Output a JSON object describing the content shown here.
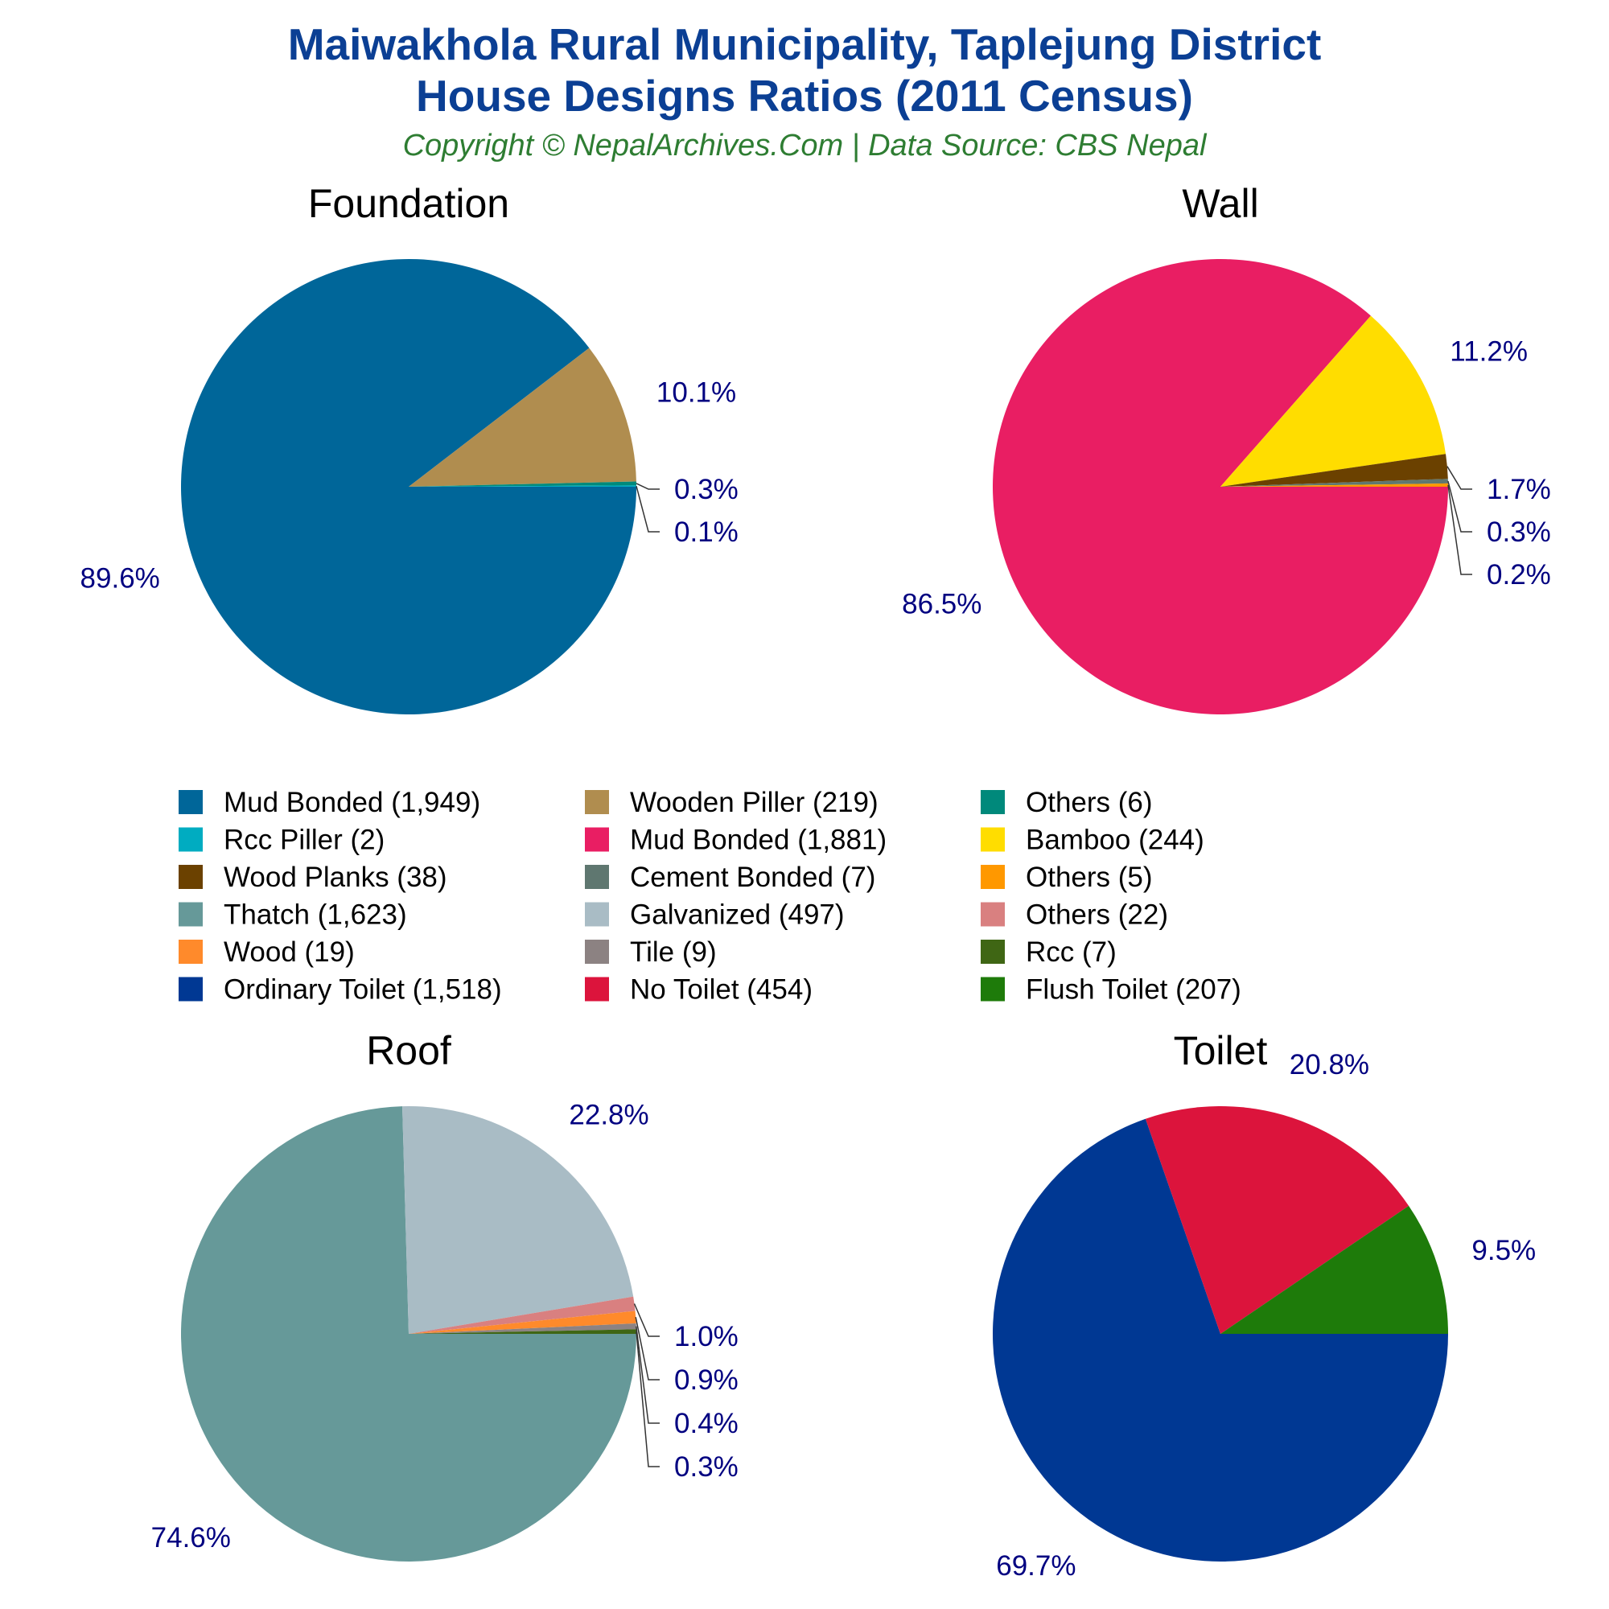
{
  "header": {
    "title_line1": "Maiwakhola Rural Municipality, Taplejung District",
    "title_line2": "House Designs Ratios (2011 Census)",
    "subtitle": "Copyright © NepalArchives.Com | Data Source: CBS Nepal"
  },
  "colors": {
    "title": "#0b3f94",
    "subtitle": "#2e7d32",
    "label": "#000080",
    "leader": "#333333"
  },
  "legend": [
    {
      "label": "Mud Bonded (1,949)",
      "color": "#006699"
    },
    {
      "label": "Wooden Piller (219)",
      "color": "#b08d4f"
    },
    {
      "label": "Others (6)",
      "color": "#00897b"
    },
    {
      "label": "Rcc Piller (2)",
      "color": "#00acc1"
    },
    {
      "label": "Mud Bonded (1,881)",
      "color": "#e91e63"
    },
    {
      "label": "Bamboo (244)",
      "color": "#ffdd00"
    },
    {
      "label": "Wood Planks (38)",
      "color": "#6b4100"
    },
    {
      "label": "Cement Bonded (7)",
      "color": "#5f7770"
    },
    {
      "label": "Others (5)",
      "color": "#ff9800"
    },
    {
      "label": "Thatch (1,623)",
      "color": "#669999"
    },
    {
      "label": "Galvanized (497)",
      "color": "#a9bcc5"
    },
    {
      "label": "Others (22)",
      "color": "#d98080"
    },
    {
      "label": "Wood (19)",
      "color": "#ff8a2b"
    },
    {
      "label": "Tile (9)",
      "color": "#8c8282"
    },
    {
      "label": "Rcc (7)",
      "color": "#3f6614"
    },
    {
      "label": "Ordinary Toilet (1,518)",
      "color": "#003893"
    },
    {
      "label": "No Toilet (454)",
      "color": "#dc143c"
    },
    {
      "label": "Flush Toilet (207)",
      "color": "#1e7b0a"
    }
  ],
  "chart_data": [
    {
      "type": "pie",
      "title": "Foundation",
      "slices": [
        {
          "label": "Mud Bonded",
          "value": 1949,
          "percent_label": "89.6%",
          "color": "#006699"
        },
        {
          "label": "Wooden Piller",
          "value": 219,
          "percent_label": "10.1%",
          "color": "#b08d4f"
        },
        {
          "label": "Others",
          "value": 6,
          "percent_label": "0.3%",
          "color": "#00897b"
        },
        {
          "label": "Rcc Piller",
          "value": 2,
          "percent_label": "0.1%",
          "color": "#00acc1"
        }
      ]
    },
    {
      "type": "pie",
      "title": "Wall",
      "slices": [
        {
          "label": "Mud Bonded",
          "value": 1881,
          "percent_label": "86.5%",
          "color": "#e91e63"
        },
        {
          "label": "Bamboo",
          "value": 244,
          "percent_label": "11.2%",
          "color": "#ffdd00"
        },
        {
          "label": "Wood Planks",
          "value": 38,
          "percent_label": "1.7%",
          "color": "#6b4100"
        },
        {
          "label": "Cement Bonded",
          "value": 7,
          "percent_label": "0.3%",
          "color": "#5f7770"
        },
        {
          "label": "Others",
          "value": 5,
          "percent_label": "0.2%",
          "color": "#ff9800"
        }
      ]
    },
    {
      "type": "pie",
      "title": "Roof",
      "slices": [
        {
          "label": "Thatch",
          "value": 1623,
          "percent_label": "74.6%",
          "color": "#669999"
        },
        {
          "label": "Galvanized",
          "value": 497,
          "percent_label": "22.8%",
          "color": "#a9bcc5"
        },
        {
          "label": "Others",
          "value": 22,
          "percent_label": "1.0%",
          "color": "#d98080"
        },
        {
          "label": "Wood",
          "value": 19,
          "percent_label": "0.9%",
          "color": "#ff8a2b"
        },
        {
          "label": "Tile",
          "value": 9,
          "percent_label": "0.4%",
          "color": "#8c8282"
        },
        {
          "label": "Rcc",
          "value": 7,
          "percent_label": "0.3%",
          "color": "#3f6614"
        }
      ]
    },
    {
      "type": "pie",
      "title": "Toilet",
      "slices": [
        {
          "label": "Ordinary Toilet",
          "value": 1518,
          "percent_label": "69.7%",
          "color": "#003893"
        },
        {
          "label": "No Toilet",
          "value": 454,
          "percent_label": "20.8%",
          "color": "#dc143c"
        },
        {
          "label": "Flush Toilet",
          "value": 207,
          "percent_label": "9.5%",
          "color": "#1e7b0a"
        }
      ]
    }
  ]
}
